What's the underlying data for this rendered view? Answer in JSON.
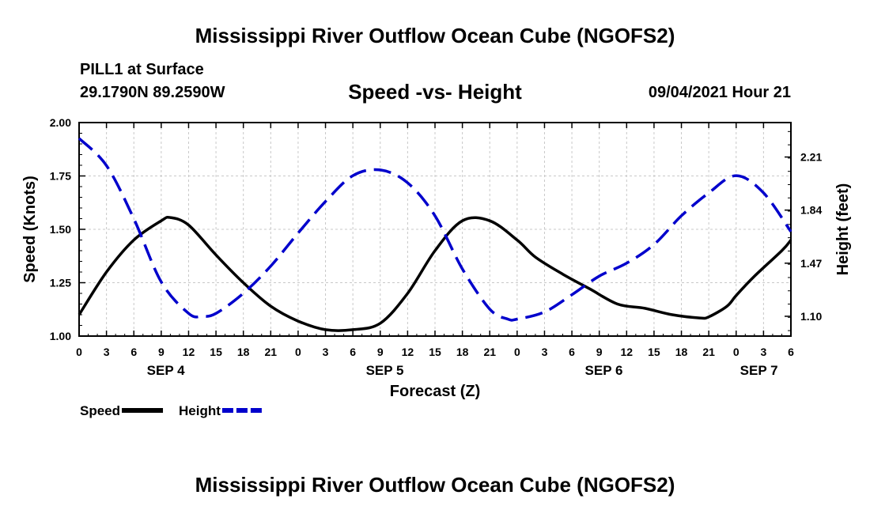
{
  "header": {
    "title": "Mississippi River Outflow Ocean Cube (NGOFS2)",
    "station": "PILL1 at Surface",
    "coords": "29.1790N  89.2590W",
    "chart_title": "Speed -vs- Height",
    "datetime": "09/04/2021 Hour 21"
  },
  "footer": {
    "title": "Mississippi River Outflow Ocean Cube (NGOFS2)"
  },
  "chart_data": {
    "type": "line",
    "title": "Speed -vs- Height",
    "xlabel": "Forecast (Z)",
    "ylabel": "Speed (Knots)",
    "y2label": "Height (feet)",
    "x_range_hours": [
      0,
      78
    ],
    "ylim": [
      1.0,
      2.0
    ],
    "y2lim": [
      0.962,
      2.45
    ],
    "yticks": [
      "2.00",
      "1.75",
      "1.50",
      "1.25",
      "1.00"
    ],
    "yticks_values": [
      2.0,
      1.75,
      1.5,
      1.25,
      1.0
    ],
    "y2ticks": [
      "2.21",
      "1.84",
      "1.47",
      "1.10"
    ],
    "y2ticks_values": [
      2.21,
      1.84,
      1.47,
      1.1
    ],
    "xticks": [
      "0",
      "3",
      "6",
      "9",
      "12",
      "15",
      "18",
      "21",
      "0",
      "3",
      "6",
      "9",
      "12",
      "15",
      "18",
      "21",
      "0",
      "3",
      "6",
      "9",
      "12",
      "15",
      "18",
      "21",
      "0",
      "3",
      "6"
    ],
    "day_labels": [
      {
        "label": "SEP 4",
        "hour": 9.5
      },
      {
        "label": "SEP 5",
        "hour": 33.5
      },
      {
        "label": "SEP 6",
        "hour": 57.5
      },
      {
        "label": "SEP 7",
        "hour": 74.5
      }
    ],
    "grid": true,
    "legend_position": "bottom-left",
    "series": [
      {
        "name": "Speed",
        "axis": "left",
        "color": "#000000",
        "style": "solid",
        "x": [
          0,
          3,
          6,
          9,
          10,
          12,
          15,
          18,
          21,
          24,
          27,
          30,
          33,
          36,
          39,
          42,
          45,
          48,
          50,
          53,
          56,
          59,
          62,
          65,
          68,
          69,
          71,
          72,
          74,
          77,
          78
        ],
        "values": [
          1.1,
          1.3,
          1.45,
          1.54,
          1.555,
          1.52,
          1.38,
          1.25,
          1.14,
          1.07,
          1.03,
          1.03,
          1.06,
          1.2,
          1.4,
          1.54,
          1.54,
          1.45,
          1.37,
          1.29,
          1.22,
          1.15,
          1.13,
          1.1,
          1.085,
          1.09,
          1.14,
          1.19,
          1.28,
          1.4,
          1.45
        ]
      },
      {
        "name": "Height",
        "axis": "right",
        "color": "#0000cc",
        "style": "dashed",
        "x": [
          0,
          3,
          6,
          9,
          12,
          13.5,
          15,
          18,
          21,
          24,
          27,
          30,
          33,
          36,
          39,
          42,
          45,
          47,
          48,
          51,
          54,
          57,
          60,
          63,
          66,
          69,
          72,
          75,
          78
        ],
        "values": [
          2.34,
          2.15,
          1.78,
          1.34,
          1.12,
          1.1,
          1.12,
          1.26,
          1.45,
          1.68,
          1.9,
          2.08,
          2.12,
          2.03,
          1.8,
          1.43,
          1.15,
          1.08,
          1.08,
          1.13,
          1.25,
          1.38,
          1.47,
          1.6,
          1.8,
          1.96,
          2.08,
          1.96,
          1.69
        ]
      }
    ]
  }
}
